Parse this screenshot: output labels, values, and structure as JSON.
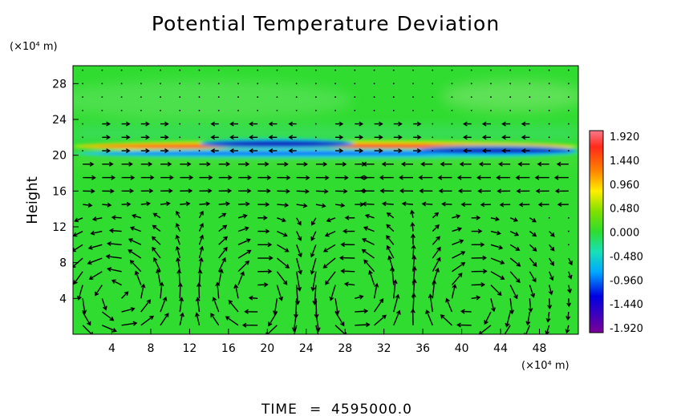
{
  "chart_data": {
    "type": "heatmap",
    "title": "Potential Temperature Deviation",
    "xlabel": "",
    "ylabel": "Height",
    "x_unit": "(×10⁴ m)",
    "y_unit": "(×10⁴ m)",
    "xlim": [
      0,
      52
    ],
    "ylim": [
      0,
      30
    ],
    "x_ticks": [
      "4",
      "8",
      "12",
      "16",
      "20",
      "24",
      "28",
      "32",
      "36",
      "40",
      "44",
      "48"
    ],
    "x_tick_values": [
      4,
      8,
      12,
      16,
      20,
      24,
      28,
      32,
      36,
      40,
      44,
      48
    ],
    "y_ticks": [
      "4",
      "8",
      "12",
      "16",
      "20",
      "24",
      "28"
    ],
    "y_tick_values": [
      4,
      8,
      12,
      16,
      20,
      24,
      28
    ],
    "colorbar": {
      "ticks": [
        "1.920",
        "1.440",
        "0.960",
        "0.480",
        "0.000",
        "-0.480",
        "-0.960",
        "-1.440",
        "-1.920"
      ],
      "values": [
        1.92,
        1.44,
        0.96,
        0.48,
        0.0,
        -0.48,
        -0.96,
        -1.44,
        -1.92
      ],
      "range": [
        -1.92,
        1.92
      ]
    },
    "background_value": 0.0,
    "field_features": [
      {
        "x": 0,
        "x_end": 52,
        "y": 21.0,
        "sign": "positive",
        "amplitude": 1.9
      },
      {
        "x": 0,
        "x_end": 52,
        "y": 20.2,
        "sign": "negative",
        "amplitude": 1.6
      },
      {
        "x": 13,
        "x_end": 29,
        "y": 21.3,
        "sign": "negative",
        "amplitude": 1.9
      },
      {
        "x": 35,
        "x_end": 52,
        "y": 20.5,
        "sign": "negative",
        "amplitude": 1.7
      }
    ],
    "vector_overlay": {
      "description": "Wind velocity vectors",
      "vortices": [
        {
          "x": 4.5,
          "y": 4.5,
          "rotation": "counterclockwise"
        },
        {
          "x": 19.5,
          "y": 4.5,
          "rotation": "clockwise"
        },
        {
          "x": 28.5,
          "y": 4.5,
          "rotation": "counterclockwise"
        },
        {
          "x": 41.0,
          "y": 3.5,
          "rotation": "clockwise"
        }
      ]
    },
    "grid": false,
    "legend": "right"
  },
  "footer": {
    "time_label": "TIME",
    "equals": "=",
    "time_value": "4595000.0"
  }
}
